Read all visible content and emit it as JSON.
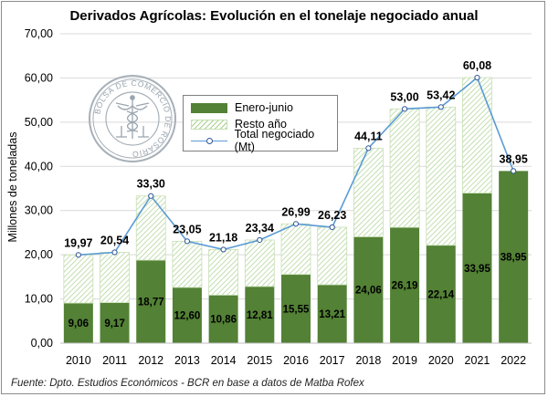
{
  "chart_data": {
    "type": "bar",
    "title": "Derivados Agrícolas: Evolución en el tonelaje negociado anual",
    "ylabel": "Millones de toneladas",
    "xlabel": "",
    "ylim": [
      0,
      70
    ],
    "yticks": [
      "0,00",
      "10,00",
      "20,00",
      "30,00",
      "40,00",
      "50,00",
      "60,00",
      "70,00"
    ],
    "categories": [
      "2010",
      "2011",
      "2012",
      "2013",
      "2014",
      "2015",
      "2016",
      "2017",
      "2018",
      "2019",
      "2020",
      "2021",
      "2022"
    ],
    "series": [
      {
        "name": "Enero-junio",
        "values": [
          9.06,
          9.17,
          18.77,
          12.6,
          10.86,
          12.81,
          15.55,
          13.21,
          24.06,
          26.19,
          22.14,
          33.95,
          38.95
        ],
        "labels": [
          "9,06",
          "9,17",
          "18,77",
          "12,60",
          "10,86",
          "12,81",
          "15,55",
          "13,21",
          "24,06",
          "26,19",
          "22,14",
          "33,95",
          "38,95"
        ],
        "color": "#538135"
      },
      {
        "name": "Resto año",
        "values": [
          10.91,
          11.37,
          14.53,
          10.45,
          10.32,
          10.53,
          11.44,
          13.02,
          20.05,
          26.81,
          31.28,
          26.13,
          0
        ],
        "color": "#a9d18e"
      },
      {
        "name": "Total negociado (Mt)",
        "values": [
          19.97,
          20.54,
          33.3,
          23.05,
          21.18,
          23.34,
          26.99,
          26.23,
          44.11,
          53.0,
          53.42,
          60.08,
          38.95
        ],
        "labels": [
          "19,97",
          "20,54",
          "33,30",
          "23,05",
          "21,18",
          "23,34",
          "26,99",
          "26,23",
          "44,11",
          "53,00",
          "53,42",
          "60,08",
          "38,95"
        ],
        "color": "#5b9bd5"
      }
    ],
    "grid": true,
    "legend_position": "top-center"
  },
  "logo": {
    "text": "BOLSA DE COMERCIO DE ROSARIO",
    "color": "#9aa5ae"
  },
  "source": "Fuente: Dpto. Estudios Económicos - BCR en base a datos de Matba Rofex"
}
